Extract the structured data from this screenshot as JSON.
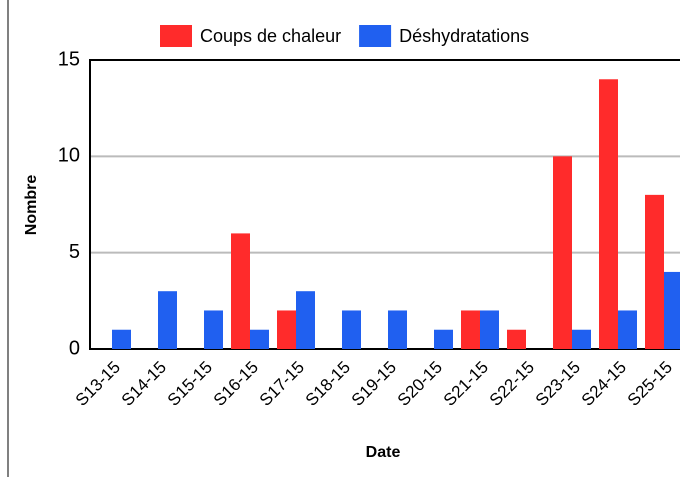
{
  "chart_data": {
    "type": "bar",
    "x_label": "Date",
    "y_label": "Nombre",
    "categories": [
      "S13-15",
      "S14-15",
      "S15-15",
      "S16-15",
      "S17-15",
      "S18-15",
      "S19-15",
      "S20-15",
      "S21-15",
      "S22-15",
      "S23-15",
      "S24-15",
      "S25-15"
    ],
    "series": [
      {
        "name": "Coups de chaleur",
        "color": "#ff2b2b",
        "values": [
          0,
          0,
          0,
          6,
          2,
          0,
          0,
          0,
          2,
          1,
          10,
          14,
          8
        ]
      },
      {
        "name": "Déshydratations",
        "color": "#2060f0",
        "values": [
          1,
          3,
          2,
          1,
          3,
          2,
          2,
          1,
          2,
          0,
          1,
          2,
          4
        ]
      }
    ],
    "ylim": [
      0,
      15
    ],
    "yticks": [
      0,
      5,
      10,
      15
    ],
    "grid": true,
    "legend": "top"
  }
}
